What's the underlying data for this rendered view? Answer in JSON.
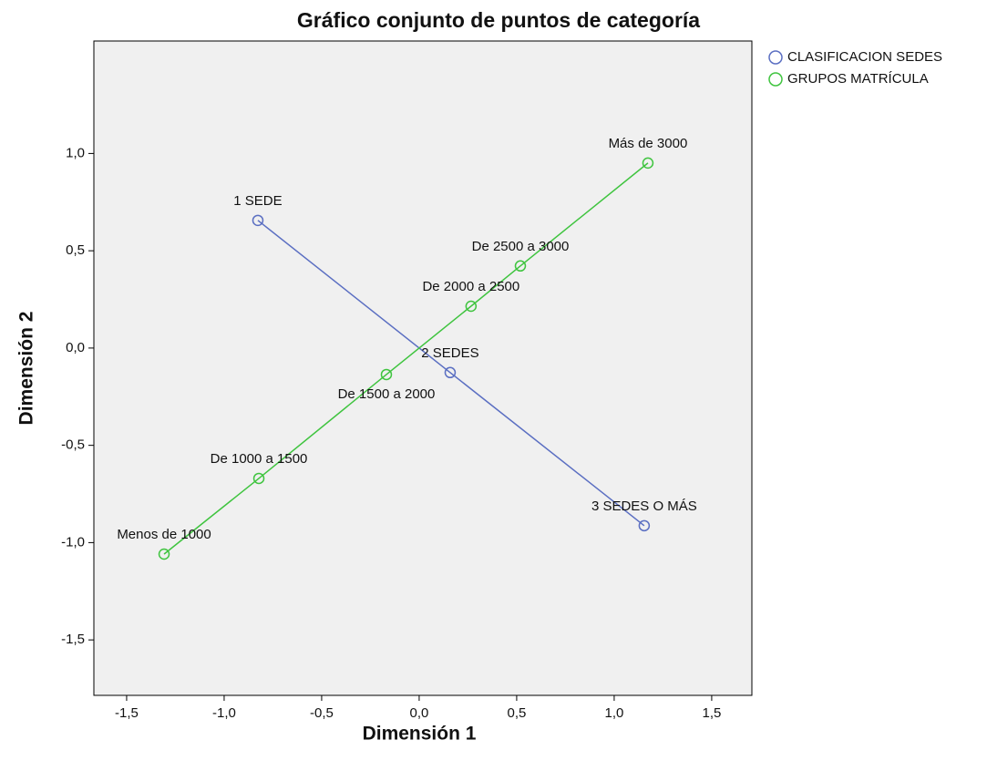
{
  "chart_data": {
    "type": "scatter-line",
    "title": "Gráfico conjunto de puntos de categoría",
    "xlabel": "Dimensión 1",
    "ylabel": "Dimensión 2",
    "xlim": [
      -1.668,
      1.706
    ],
    "ylim": [
      -1.785,
      1.578
    ],
    "xticks": [
      {
        "value": -1.5,
        "label": "-1,5"
      },
      {
        "value": -1,
        "label": "-1,0"
      },
      {
        "value": -0.5,
        "label": "-0,5"
      },
      {
        "value": 0,
        "label": "0,0"
      },
      {
        "value": 0.5,
        "label": "0,5"
      },
      {
        "value": 1,
        "label": "1,0"
      },
      {
        "value": 1.5,
        "label": "1,5"
      }
    ],
    "yticks": [
      {
        "value": -1.5,
        "label": "-1,5"
      },
      {
        "value": -1,
        "label": "-1,0"
      },
      {
        "value": -0.5,
        "label": "-0,5"
      },
      {
        "value": 0,
        "label": "0,0"
      },
      {
        "value": 0.5,
        "label": "0,5"
      },
      {
        "value": 1,
        "label": "1,0"
      }
    ],
    "legend": "outside-top-right",
    "series": [
      {
        "name": "CLASIFICACION SEDES",
        "color": "#5b6fc2",
        "labels": [
          "1 SEDE",
          "2 SEDES",
          "3 SEDES O MÁS"
        ],
        "x": [
          -0.827,
          0.159,
          1.154
        ],
        "values": [
          0.656,
          -0.126,
          -0.913
        ]
      },
      {
        "name": "GRUPOS MATRÍCULA",
        "color": "#3fc43f",
        "labels": [
          "Menos de 1000",
          "De 1000 a 1500",
          "De 1500 a 2000",
          "De 2000 a 2500",
          "De 2500 a 3000",
          "Más de 3000"
        ],
        "x": [
          -1.308,
          -0.822,
          -0.168,
          0.266,
          0.519,
          1.173
        ],
        "values": [
          -1.059,
          -0.67,
          -0.136,
          0.215,
          0.422,
          0.951
        ]
      }
    ]
  }
}
